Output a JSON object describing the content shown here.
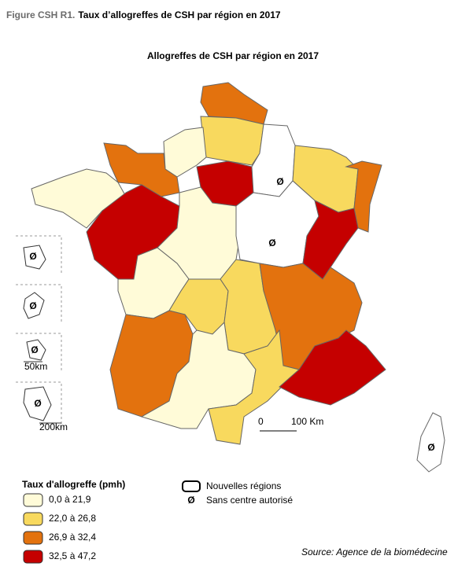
{
  "header": {
    "figure": "Figure CSH R1.",
    "title": "Taux d’allogreffes de CSH par région en 2017"
  },
  "map": {
    "title": "Allogreffes de CSH par région en 2017",
    "symbols": [
      "Ø",
      "Ø",
      "Ø",
      "Ø",
      "Ø",
      "Ø",
      "Ø"
    ],
    "scale": {
      "start": "0",
      "end": "100 Km"
    },
    "inset_scales": [
      "50km",
      "200km"
    ]
  },
  "legend": {
    "title": "Taux d'allogreffe (pmh)",
    "classes": [
      {
        "label": "0,0 à 21,9",
        "color": "#fffbd8"
      },
      {
        "label": "22,0 à 26,8",
        "color": "#f8d95e"
      },
      {
        "label": "26,9 à 32,4",
        "color": "#e3720e"
      },
      {
        "label": "32,5 à 47,2",
        "color": "#c50000"
      }
    ],
    "outline": "Nouvelles régions",
    "no_centre": {
      "symbol": "Ø",
      "label": "Sans centre autorisé"
    }
  },
  "source": "Source: Agence de la biomédecine"
}
